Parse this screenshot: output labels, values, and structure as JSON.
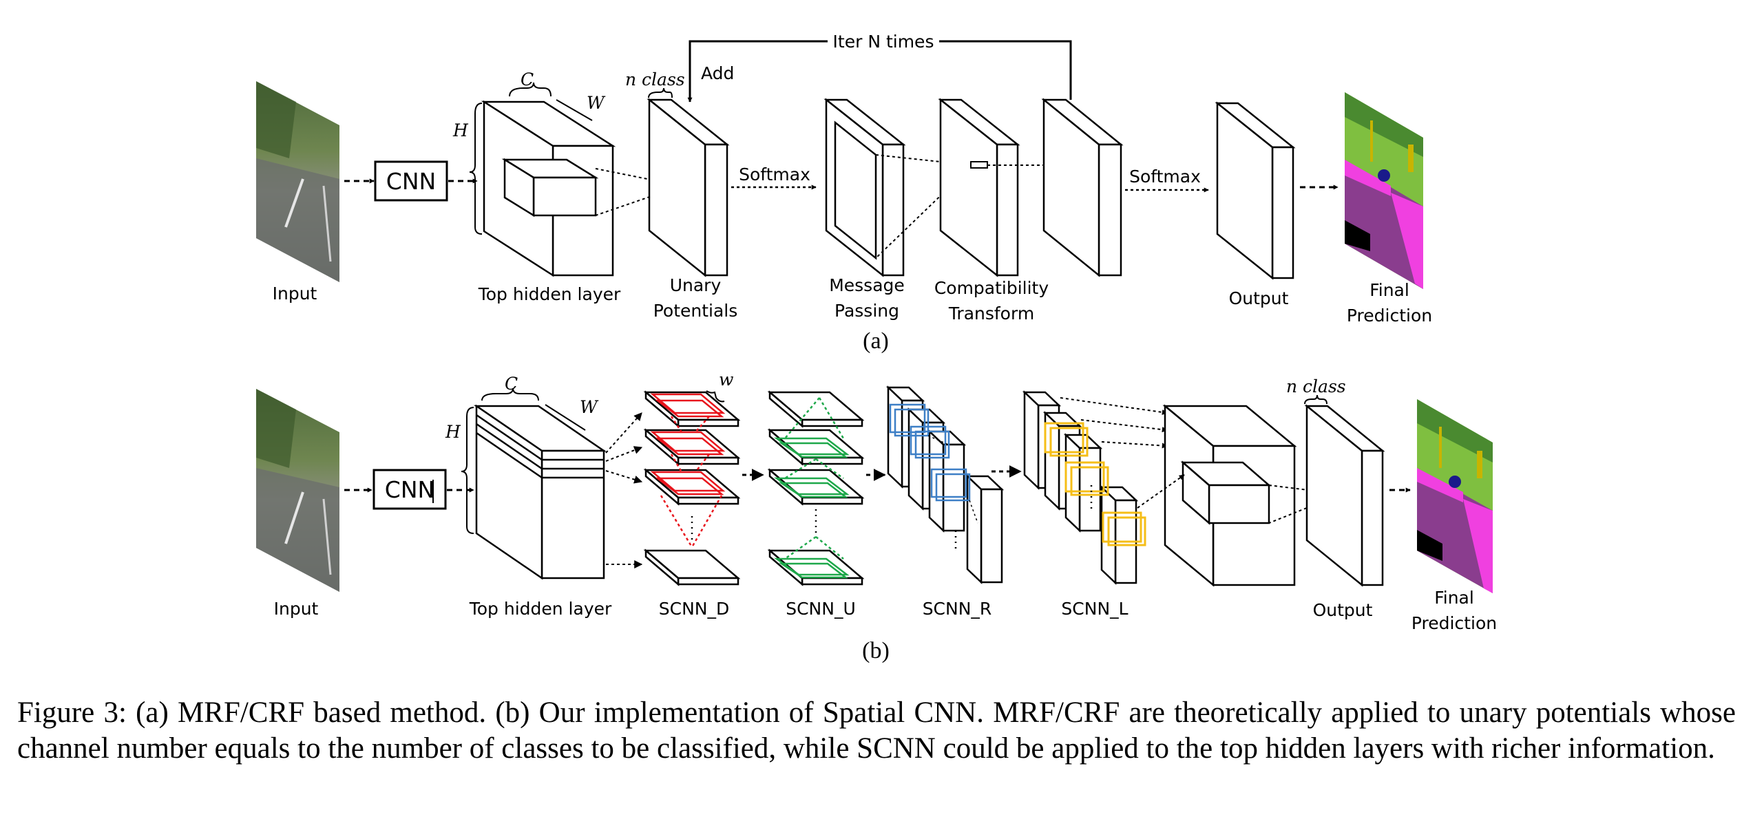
{
  "panel_a": {
    "input": "Input",
    "cnn": "CNN",
    "hidden_layer": "Top hidden layer",
    "dim_c": "C",
    "dim_h": "H",
    "dim_w": "W",
    "n_class": "n class",
    "add": "Add",
    "iter": "Iter N times",
    "unary_1": "Unary",
    "unary_2": "Potentials",
    "softmax_1": "Softmax",
    "message_1": "Message",
    "message_2": "Passing",
    "compat_1": "Compatibility",
    "compat_2": "Transform",
    "softmax_2": "Softmax",
    "output": "Output",
    "final_1": "Final",
    "final_2": "Prediction",
    "label": "(a)"
  },
  "panel_b": {
    "input": "Input",
    "cnn": "CNN",
    "hidden_layer": "Top hidden layer",
    "dim_c": "C",
    "dim_h": "H",
    "dim_w": "W",
    "slice_w": "w",
    "scnn_d": "SCNN_D",
    "scnn_u": "SCNN_U",
    "scnn_r": "SCNN_R",
    "scnn_l": "SCNN_L",
    "n_class": "n class",
    "output": "Output",
    "final_1": "Final",
    "final_2": "Prediction",
    "label": "(b)"
  },
  "colors": {
    "scnn_d": "#e8141c",
    "scnn_u": "#1ea84a",
    "scnn_r": "#3d7fc6",
    "scnn_l": "#f5be18",
    "segment_purple": "#8a3d8e",
    "segment_magenta": "#f040e0",
    "segment_green": "#78e060"
  },
  "caption": "Figure 3: (a) MRF/CRF based method. (b) Our implementation of Spatial CNN. MRF/CRF are theoretically applied to unary potentials whose channel number equals to the number of classes to be classified, while SCNN could be applied to the top hidden layers with richer information."
}
